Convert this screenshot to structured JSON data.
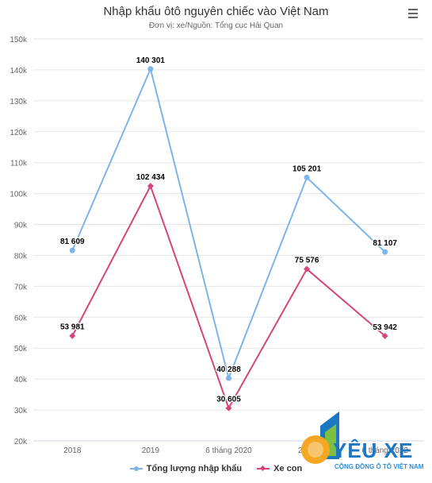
{
  "chart_data": {
    "type": "line",
    "title": "Nhập khẩu ôtô nguyên chiếc vào Việt Nam",
    "subtitle": "Đơn vị: xe/Nguồn: Tổng cục Hải Quan",
    "categories": [
      "2018",
      "2019",
      "6 tháng 2020",
      "2021",
      "6 tháng 2022"
    ],
    "ylim": [
      20000,
      150000
    ],
    "yticks": [
      20000,
      30000,
      40000,
      50000,
      60000,
      70000,
      80000,
      90000,
      100000,
      110000,
      120000,
      130000,
      140000,
      150000
    ],
    "ytick_labels": [
      "20k",
      "30k",
      "40k",
      "50k",
      "60k",
      "70k",
      "80k",
      "90k",
      "100k",
      "110k",
      "120k",
      "130k",
      "140k",
      "150k"
    ],
    "grid": true,
    "legend_position": "bottom",
    "series": [
      {
        "name": "Tổng lượng nhập khẩu",
        "color": "#7cb5ec",
        "marker": "circle",
        "values": [
          81609,
          140301,
          40288,
          105201,
          81107
        ],
        "labels": [
          "81 609",
          "140 301",
          "40 288",
          "105 201",
          "81 107"
        ]
      },
      {
        "name": "Xe con",
        "color": "#d4457c",
        "marker": "diamond",
        "values": [
          53981,
          102434,
          30605,
          75576,
          53942
        ],
        "labels": [
          "53 981",
          "102 434",
          "30 605",
          "75 576",
          "53 942"
        ]
      }
    ]
  },
  "menu_icon": "hamburger-menu-icon",
  "watermark": {
    "brand": "YÊU XE",
    "tagline": "CỘNG ĐỒNG Ô TÔ VIỆT NAM",
    "colors": {
      "blue": "#1c77c3",
      "orange": "#f5a623",
      "green": "#7cc043"
    }
  }
}
